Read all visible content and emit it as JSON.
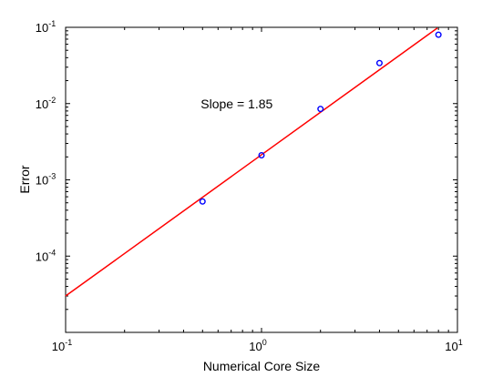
{
  "chart_data": {
    "type": "scatter",
    "title": "",
    "xlabel": "Numerical Core Size",
    "ylabel": "Error",
    "xscale": "log",
    "yscale": "log",
    "xlim": [
      0.1,
      10
    ],
    "ylim": [
      1e-05,
      0.1
    ],
    "grid": false,
    "x_ticks": [
      {
        "value": 0.1,
        "base": "10",
        "exp": "-1"
      },
      {
        "value": 1,
        "base": "10",
        "exp": "0"
      },
      {
        "value": 10,
        "base": "10",
        "exp": "1"
      }
    ],
    "y_ticks": [
      {
        "value": 0.0001,
        "base": "10",
        "exp": "-4"
      },
      {
        "value": 0.001,
        "base": "10",
        "exp": "-3"
      },
      {
        "value": 0.01,
        "base": "10",
        "exp": "-2"
      },
      {
        "value": 0.1,
        "base": "10",
        "exp": "-1"
      }
    ],
    "series": [
      {
        "kind": "markers",
        "marker": "circle",
        "color": "#0000ff",
        "x": [
          0.5,
          1,
          2,
          4,
          8
        ],
        "y": [
          0.00052,
          0.0021,
          0.0085,
          0.034,
          0.08
        ]
      },
      {
        "kind": "line",
        "color": "#ff0000",
        "x": [
          0.1,
          7.9
        ],
        "y": [
          3e-05,
          0.098
        ]
      }
    ],
    "annotations": [
      {
        "text": "Slope = 1.85",
        "x": 0.5,
        "y": 0.01
      }
    ]
  }
}
